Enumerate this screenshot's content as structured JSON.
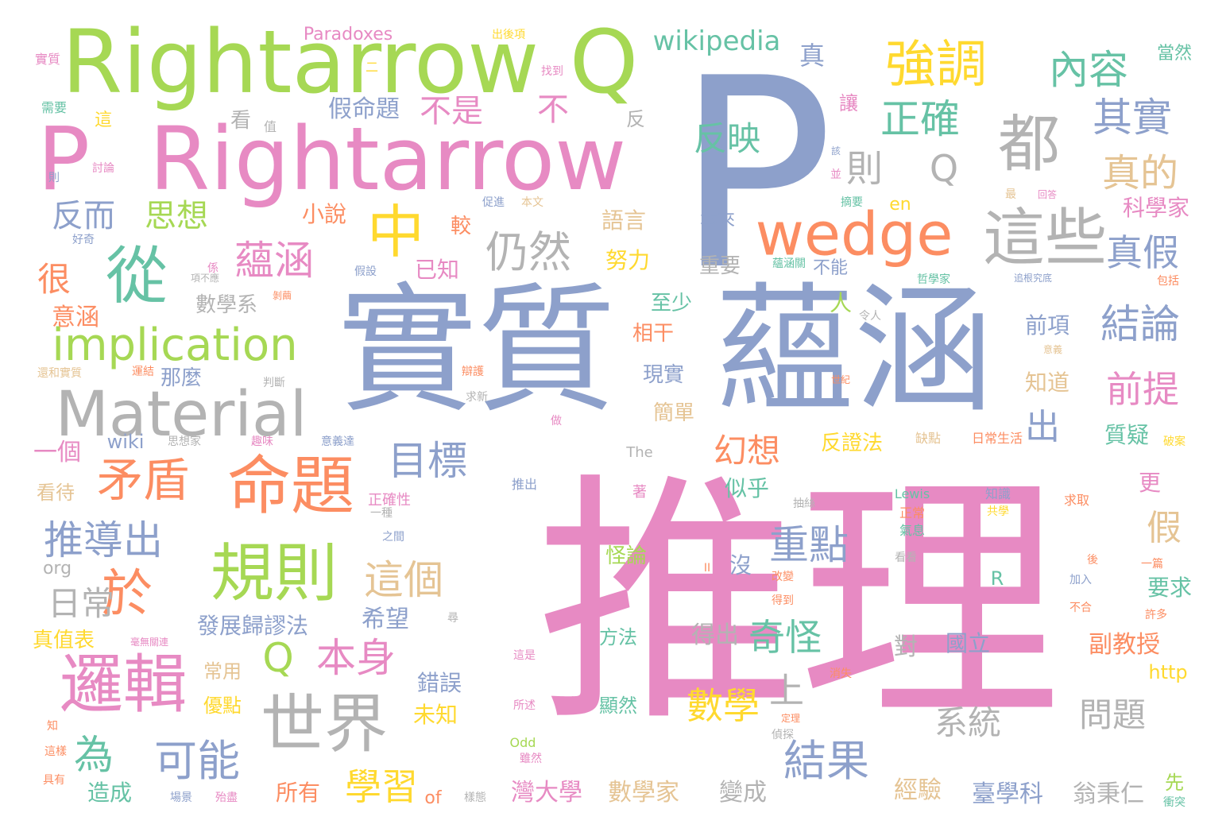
{
  "palette": {
    "pink": "#e78ac3",
    "blue": "#8da0cb",
    "green": "#a6d854",
    "orange": "#fc8d62",
    "teal": "#66c2a5",
    "yellow": "#ffd92f",
    "tan": "#e5c494",
    "gray": "#b3b3b3"
  },
  "words": [
    {
      "text": "推理",
      "color": "pink"
    },
    {
      "text": "實質",
      "color": "blue"
    },
    {
      "text": "蘊涵",
      "color": "blue"
    },
    {
      "text": "P",
      "color": "blue"
    },
    {
      "text": "Rightarrow",
      "color": "green"
    },
    {
      "text": "Q",
      "color": "green"
    },
    {
      "text": "P",
      "color": "pink"
    },
    {
      "text": "Rightarrow",
      "color": "pink"
    },
    {
      "text": "Material",
      "color": "gray"
    },
    {
      "text": "命題",
      "color": "orange"
    },
    {
      "text": "規則",
      "color": "green"
    },
    {
      "text": "邏輯",
      "color": "pink"
    },
    {
      "text": "世界",
      "color": "gray"
    },
    {
      "text": "wedge",
      "color": "orange"
    },
    {
      "text": "這些",
      "color": "gray"
    },
    {
      "text": "都",
      "color": "gray"
    },
    {
      "text": "中",
      "color": "yellow"
    },
    {
      "text": "從",
      "color": "teal"
    },
    {
      "text": "implication",
      "color": "green"
    },
    {
      "text": "矛盾",
      "color": "orange"
    },
    {
      "text": "於",
      "color": "orange"
    },
    {
      "text": "強調",
      "color": "yellow"
    },
    {
      "text": "內容",
      "color": "teal"
    },
    {
      "text": "wikipedia",
      "color": "teal"
    },
    {
      "text": "結果",
      "color": "blue"
    },
    {
      "text": "可能",
      "color": "blue"
    },
    {
      "text": "Q",
      "color": "green"
    },
    {
      "text": "本身",
      "color": "pink"
    },
    {
      "text": "推導出",
      "color": "blue"
    },
    {
      "text": "目標",
      "color": "blue"
    },
    {
      "text": "這個",
      "color": "tan"
    },
    {
      "text": "仍然",
      "color": "gray"
    },
    {
      "text": "蘊涵",
      "color": "pink"
    },
    {
      "text": "結論",
      "color": "blue"
    },
    {
      "text": "前提",
      "color": "pink"
    },
    {
      "text": "重點",
      "color": "blue"
    },
    {
      "text": "奇怪",
      "color": "teal"
    },
    {
      "text": "數學",
      "color": "yellow"
    },
    {
      "text": "學習",
      "color": "yellow"
    },
    {
      "text": "正確",
      "color": "teal"
    },
    {
      "text": "其實",
      "color": "blue"
    },
    {
      "text": "真的",
      "color": "tan"
    },
    {
      "text": "真假",
      "color": "blue"
    },
    {
      "text": "則",
      "color": "gray"
    },
    {
      "text": "Q",
      "color": "gray"
    },
    {
      "text": "反映",
      "color": "teal"
    },
    {
      "text": "思想",
      "color": "green"
    },
    {
      "text": "反而",
      "color": "blue"
    },
    {
      "text": "不是",
      "color": "pink"
    },
    {
      "text": "假命題",
      "color": "blue"
    },
    {
      "text": "不",
      "color": "pink"
    },
    {
      "text": "日常",
      "color": "gray"
    },
    {
      "text": "為",
      "color": "teal"
    },
    {
      "text": "很",
      "color": "orange"
    },
    {
      "text": "意涵",
      "color": "orange"
    },
    {
      "text": "幻想",
      "color": "orange"
    },
    {
      "text": "系統",
      "color": "gray"
    },
    {
      "text": "問題",
      "color": "gray"
    },
    {
      "text": "假",
      "color": "tan"
    },
    {
      "text": "出",
      "color": "blue"
    },
    {
      "text": "上",
      "color": "gray"
    },
    {
      "text": "希望",
      "color": "blue"
    },
    {
      "text": "發展歸謬法",
      "color": "blue"
    },
    {
      "text": "得出",
      "color": "gray"
    },
    {
      "text": "國立",
      "color": "blue"
    },
    {
      "text": "對",
      "color": "gray"
    },
    {
      "text": "副教授",
      "color": "orange"
    },
    {
      "text": "要求",
      "color": "teal"
    },
    {
      "text": "質疑",
      "color": "teal"
    },
    {
      "text": "知道",
      "color": "tan"
    },
    {
      "text": "前項",
      "color": "blue"
    },
    {
      "text": "臺學科",
      "color": "blue"
    },
    {
      "text": "翁秉仁",
      "color": "gray"
    },
    {
      "text": "經驗",
      "color": "tan"
    },
    {
      "text": "變成",
      "color": "gray"
    },
    {
      "text": "數學家",
      "color": "tan"
    },
    {
      "text": "灣大學",
      "color": "pink"
    },
    {
      "text": "所有",
      "color": "orange"
    },
    {
      "text": "造成",
      "color": "teal"
    },
    {
      "text": "優點",
      "color": "yellow"
    },
    {
      "text": "常用",
      "color": "tan"
    },
    {
      "text": "真值表",
      "color": "yellow"
    },
    {
      "text": "錯誤",
      "color": "blue"
    },
    {
      "text": "未知",
      "color": "yellow"
    },
    {
      "text": "Paradoxes",
      "color": "pink"
    },
    {
      "text": "語言",
      "color": "tan"
    },
    {
      "text": "努力",
      "color": "yellow"
    },
    {
      "text": "重要",
      "color": "gray"
    },
    {
      "text": "本來",
      "color": "blue"
    },
    {
      "text": "不能",
      "color": "blue"
    },
    {
      "text": "小說",
      "color": "orange"
    },
    {
      "text": "已知",
      "color": "pink"
    },
    {
      "text": "較",
      "color": "orange"
    },
    {
      "text": "數學系",
      "color": "gray"
    },
    {
      "text": "至少",
      "color": "teal"
    },
    {
      "text": "相干",
      "color": "orange"
    },
    {
      "text": "現實",
      "color": "blue"
    },
    {
      "text": "簡單",
      "color": "tan"
    },
    {
      "text": "那麼",
      "color": "blue"
    },
    {
      "text": "一個",
      "color": "pink"
    },
    {
      "text": "wiki",
      "color": "blue"
    },
    {
      "text": "反證法",
      "color": "yellow"
    },
    {
      "text": "似乎",
      "color": "teal"
    },
    {
      "text": "怪論",
      "color": "green"
    },
    {
      "text": "沒",
      "color": "blue"
    },
    {
      "text": "方法",
      "color": "teal"
    },
    {
      "text": "顯然",
      "color": "teal"
    },
    {
      "text": "科學家",
      "color": "pink"
    },
    {
      "text": "當然",
      "color": "teal"
    },
    {
      "text": "真",
      "color": "blue"
    },
    {
      "text": "更",
      "color": "pink"
    },
    {
      "text": "http",
      "color": "yellow"
    },
    {
      "text": "先",
      "color": "green"
    },
    {
      "text": "人",
      "color": "green"
    },
    {
      "text": "看",
      "color": "gray"
    },
    {
      "text": "org",
      "color": "gray"
    },
    {
      "text": "en",
      "color": "yellow"
    },
    {
      "text": "R",
      "color": "teal"
    },
    {
      "text": "of",
      "color": "orange"
    },
    {
      "text": "看待",
      "color": "tan"
    },
    {
      "text": "Lewis",
      "color": "teal"
    },
    {
      "text": "Odd",
      "color": "green"
    },
    {
      "text": "The",
      "color": "gray"
    },
    {
      "text": "反",
      "color": "gray"
    },
    {
      "text": "讓",
      "color": "pink"
    },
    {
      "text": "一篇",
      "color": "orange"
    },
    {
      "text": "許多",
      "color": "orange"
    },
    {
      "text": "加入",
      "color": "blue"
    },
    {
      "text": "知識",
      "color": "blue"
    },
    {
      "text": "求取",
      "color": "orange"
    },
    {
      "text": "共學",
      "color": "yellow"
    },
    {
      "text": "正常",
      "color": "orange"
    },
    {
      "text": "氣息",
      "color": "teal"
    },
    {
      "text": "缺點",
      "color": "tan"
    },
    {
      "text": "日常生活",
      "color": "orange"
    },
    {
      "text": "破案",
      "color": "yellow"
    },
    {
      "text": "這",
      "color": "yellow"
    },
    {
      "text": "值",
      "color": "gray"
    },
    {
      "text": "需要",
      "color": "teal"
    },
    {
      "text": "實質",
      "color": "pink"
    },
    {
      "text": "出後項",
      "color": "yellow"
    },
    {
      "text": "找到",
      "color": "pink"
    },
    {
      "text": "二",
      "color": "yellow"
    },
    {
      "text": "討論",
      "color": "pink"
    },
    {
      "text": "則",
      "color": "blue"
    },
    {
      "text": "好奇",
      "color": "blue"
    },
    {
      "text": "係",
      "color": "pink"
    },
    {
      "text": "項不應",
      "color": "gray"
    },
    {
      "text": "假設",
      "color": "blue"
    },
    {
      "text": "剝繭",
      "color": "orange"
    },
    {
      "text": "蘊涵關",
      "color": "teal"
    },
    {
      "text": "哲學家",
      "color": "teal"
    },
    {
      "text": "追根究底",
      "color": "blue"
    },
    {
      "text": "包括",
      "color": "orange"
    },
    {
      "text": "令人",
      "color": "gray"
    },
    {
      "text": "意義",
      "color": "tan"
    },
    {
      "text": "世紀",
      "color": "orange"
    },
    {
      "text": "辯護",
      "color": "orange"
    },
    {
      "text": "運結",
      "color": "orange"
    },
    {
      "text": "判斷",
      "color": "gray"
    },
    {
      "text": "還和實質",
      "color": "tan"
    },
    {
      "text": "求新",
      "color": "gray"
    },
    {
      "text": "思想家",
      "color": "gray"
    },
    {
      "text": "趣味",
      "color": "pink"
    },
    {
      "text": "意義達",
      "color": "blue"
    },
    {
      "text": "做",
      "color": "pink"
    },
    {
      "text": "推出",
      "color": "blue"
    },
    {
      "text": "正確性",
      "color": "pink"
    },
    {
      "text": "之間",
      "color": "blue"
    },
    {
      "text": "一種",
      "color": "gray"
    },
    {
      "text": "抽絲",
      "color": "gray"
    },
    {
      "text": "著",
      "color": "pink"
    },
    {
      "text": "改變",
      "color": "orange"
    },
    {
      "text": "得到",
      "color": "orange"
    },
    {
      "text": "不合",
      "color": "orange"
    },
    {
      "text": "看看",
      "color": "gray"
    },
    {
      "text": "後",
      "color": "orange"
    },
    {
      "text": "毫無關連",
      "color": "pink"
    },
    {
      "text": "尋",
      "color": "gray"
    },
    {
      "text": "這是",
      "color": "pink"
    },
    {
      "text": "消失",
      "color": "orange"
    },
    {
      "text": "所述",
      "color": "pink"
    },
    {
      "text": "定理",
      "color": "orange"
    },
    {
      "text": "偵探",
      "color": "gray"
    },
    {
      "text": "雖然",
      "color": "pink"
    },
    {
      "text": "樣態",
      "color": "gray"
    },
    {
      "text": "衝突",
      "color": "teal"
    },
    {
      "text": "場景",
      "color": "blue"
    },
    {
      "text": "殆盡",
      "color": "pink"
    },
    {
      "text": "具有",
      "color": "orange"
    },
    {
      "text": "這樣",
      "color": "orange"
    },
    {
      "text": "知",
      "color": "orange"
    },
    {
      "text": "促進",
      "color": "blue"
    },
    {
      "text": "本文",
      "color": "tan"
    },
    {
      "text": "最",
      "color": "tan"
    },
    {
      "text": "回答",
      "color": "pink"
    },
    {
      "text": "摘要",
      "color": "teal"
    },
    {
      "text": "並",
      "color": "pink"
    },
    {
      "text": "該",
      "color": "blue"
    },
    {
      "text": "II",
      "color": "orange"
    }
  ]
}
